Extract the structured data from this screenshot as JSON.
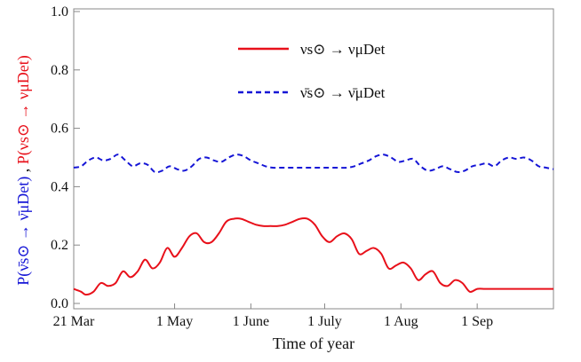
{
  "chart_data": {
    "type": "line",
    "title": "",
    "xlabel": "Time of year",
    "ylabel": {
      "blue_part": "P(ν̄s⊙ → ν̄μDet)",
      "separator": " , ",
      "red_part": "P(νs⊙ → νμDet)"
    },
    "xlim_days": [
      0,
      195
    ],
    "ylim": [
      0.0,
      1.0
    ],
    "x_ticks": [
      {
        "day": 0,
        "label": "21 Mar"
      },
      {
        "day": 41,
        "label": "1 May"
      },
      {
        "day": 72,
        "label": "1 June"
      },
      {
        "day": 102,
        "label": "1 July"
      },
      {
        "day": 133,
        "label": "1 Aug"
      },
      {
        "day": 164,
        "label": "1 Sep"
      }
    ],
    "y_ticks": [
      {
        "value": 0.0,
        "label": "0.0"
      },
      {
        "value": 0.2,
        "label": "0.2"
      },
      {
        "value": 0.4,
        "label": "0.4"
      },
      {
        "value": 0.6,
        "label": "0.6"
      },
      {
        "value": 0.8,
        "label": "0.8"
      },
      {
        "value": 1.0,
        "label": "1.0"
      }
    ],
    "grid": false,
    "legend_position": "top-center",
    "series": [
      {
        "name": "νs⊙ → νμDet",
        "color": "#e8101a",
        "style": "solid",
        "x": [
          0,
          3,
          5,
          8,
          11,
          14,
          17,
          20,
          23,
          26,
          29,
          32,
          35,
          38,
          41,
          44,
          47,
          50,
          53,
          56,
          59,
          62,
          65,
          68,
          71,
          74,
          77,
          80,
          83,
          86,
          89,
          92,
          95,
          98,
          101,
          104,
          107,
          110,
          113,
          116,
          119,
          122,
          125,
          128,
          131,
          134,
          137,
          140,
          143,
          146,
          149,
          152,
          155,
          158,
          161,
          164,
          167,
          170,
          173,
          176,
          179,
          182,
          185,
          188,
          191,
          195
        ],
        "y": [
          0.05,
          0.04,
          0.03,
          0.04,
          0.07,
          0.06,
          0.07,
          0.11,
          0.09,
          0.11,
          0.15,
          0.12,
          0.14,
          0.19,
          0.16,
          0.19,
          0.23,
          0.24,
          0.21,
          0.21,
          0.24,
          0.28,
          0.29,
          0.29,
          0.28,
          0.27,
          0.265,
          0.265,
          0.265,
          0.27,
          0.28,
          0.29,
          0.29,
          0.27,
          0.23,
          0.21,
          0.23,
          0.24,
          0.22,
          0.17,
          0.18,
          0.19,
          0.17,
          0.12,
          0.13,
          0.14,
          0.12,
          0.08,
          0.1,
          0.11,
          0.07,
          0.06,
          0.08,
          0.07,
          0.04,
          0.05,
          0.05,
          0.05,
          0.05,
          0.05,
          0.05,
          0.05,
          0.05,
          0.05,
          0.05,
          0.05
        ]
      },
      {
        "name": "ν̄s⊙ → ν̄μDet",
        "color": "#1515d6",
        "style": "dashed",
        "x": [
          0,
          3,
          6,
          9,
          12,
          15,
          18,
          21,
          24,
          27,
          30,
          33,
          36,
          39,
          42,
          45,
          48,
          51,
          54,
          57,
          60,
          63,
          66,
          69,
          72,
          75,
          78,
          81,
          84,
          87,
          90,
          93,
          96,
          99,
          102,
          105,
          108,
          111,
          114,
          117,
          120,
          123,
          126,
          129,
          132,
          135,
          138,
          141,
          144,
          147,
          150,
          153,
          156,
          159,
          162,
          165,
          168,
          171,
          174,
          177,
          180,
          183,
          186,
          189,
          192,
          195
        ],
        "y": [
          0.465,
          0.47,
          0.49,
          0.5,
          0.49,
          0.495,
          0.51,
          0.49,
          0.47,
          0.48,
          0.475,
          0.45,
          0.455,
          0.47,
          0.46,
          0.455,
          0.47,
          0.495,
          0.5,
          0.49,
          0.485,
          0.5,
          0.51,
          0.505,
          0.49,
          0.48,
          0.47,
          0.465,
          0.465,
          0.465,
          0.465,
          0.465,
          0.465,
          0.465,
          0.465,
          0.465,
          0.465,
          0.465,
          0.47,
          0.48,
          0.49,
          0.505,
          0.51,
          0.5,
          0.485,
          0.49,
          0.495,
          0.47,
          0.455,
          0.46,
          0.47,
          0.46,
          0.45,
          0.455,
          0.47,
          0.475,
          0.48,
          0.47,
          0.49,
          0.5,
          0.495,
          0.5,
          0.49,
          0.47,
          0.465,
          0.46
        ]
      }
    ]
  },
  "colors": {
    "red_series": "#e8101a",
    "blue_series": "#1515d6",
    "axis": "#888888",
    "text": "#111111"
  }
}
